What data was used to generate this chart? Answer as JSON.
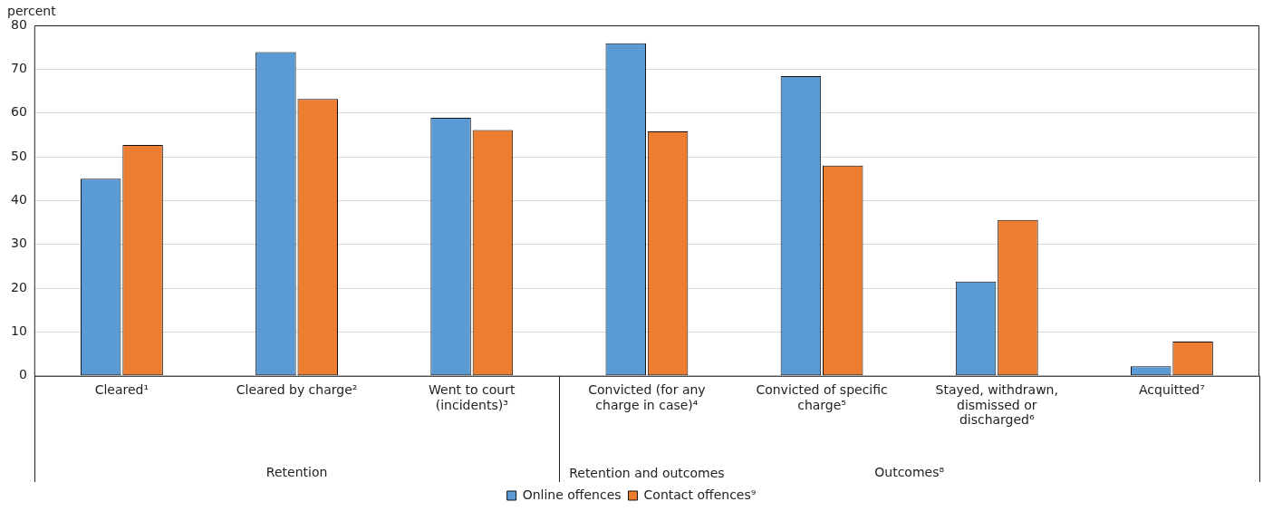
{
  "chart_data": {
    "type": "bar",
    "ylabel": "percent",
    "xlabel": "Retention and outcomes",
    "categories": [
      "Cleared¹",
      "Cleared by charge²",
      "Went to court (incidents)³",
      "Convicted (for any charge in case)⁴",
      "Convicted of specific charge⁵",
      "Stayed, withdrawn, dismissed or discharged⁶",
      "Acquitted⁷"
    ],
    "series": [
      {
        "name": "Online offences",
        "color": "#5b9bd5",
        "values": [
          45.0,
          73.9,
          58.9,
          75.9,
          68.4,
          21.5,
          2.2
        ]
      },
      {
        "name": "Contact offences⁹",
        "color": "#ed7d31",
        "values": [
          52.7,
          63.2,
          56.1,
          55.8,
          48.0,
          35.6,
          7.8
        ]
      }
    ],
    "annotations": [
      "Retention",
      "Outcomes⁸"
    ],
    "ylim": [
      0,
      80
    ],
    "yticks": [
      0,
      10,
      20,
      30,
      40,
      50,
      60,
      70,
      80
    ],
    "grid": "y",
    "legend": "bottom"
  }
}
